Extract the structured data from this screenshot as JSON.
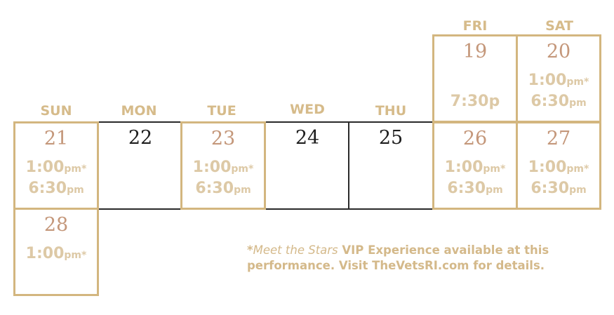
{
  "days_of_week": {
    "fri": "FRI",
    "sat": "SAT",
    "sun": "SUN",
    "mon": "MON",
    "tue": "TUE",
    "wed": "WED",
    "thu": "THU"
  },
  "days": {
    "d19": {
      "number": "19",
      "times": [
        {
          "time": "7:30p",
          "suffix": ""
        }
      ]
    },
    "d20": {
      "number": "20",
      "times": [
        {
          "time": "1:00",
          "suffix": "pm*"
        },
        {
          "time": "6:30",
          "suffix": "pm"
        }
      ]
    },
    "d21": {
      "number": "21",
      "times": [
        {
          "time": "1:00",
          "suffix": "pm*"
        },
        {
          "time": "6:30",
          "suffix": "pm"
        }
      ]
    },
    "d22": {
      "number": "22",
      "times": []
    },
    "d23": {
      "number": "23",
      "times": [
        {
          "time": "1:00",
          "suffix": "pm*"
        },
        {
          "time": "6:30",
          "suffix": "pm"
        }
      ]
    },
    "d24": {
      "number": "24",
      "times": []
    },
    "d25": {
      "number": "25",
      "times": []
    },
    "d26": {
      "number": "26",
      "times": [
        {
          "time": "1:00",
          "suffix": "pm*"
        },
        {
          "time": "6:30",
          "suffix": "pm"
        }
      ]
    },
    "d27": {
      "number": "27",
      "times": [
        {
          "time": "1:00",
          "suffix": "pm*"
        },
        {
          "time": "6:30",
          "suffix": "pm"
        }
      ]
    },
    "d28": {
      "number": "28",
      "times": [
        {
          "time": "1:00",
          "suffix": "pm*"
        }
      ]
    }
  },
  "footnote": {
    "asterisk": "*",
    "italic": "Meet the Stars",
    "text1": " VIP Experience available at this",
    "text2": "performance. Visit TheVetsRI.com for details."
  },
  "colors": {
    "gold_border": "#d3b67f",
    "header": "#d6bb8a",
    "date_number": "#c4977a",
    "time": "#ddc9a6",
    "dark_border": "#2a2a2a"
  }
}
